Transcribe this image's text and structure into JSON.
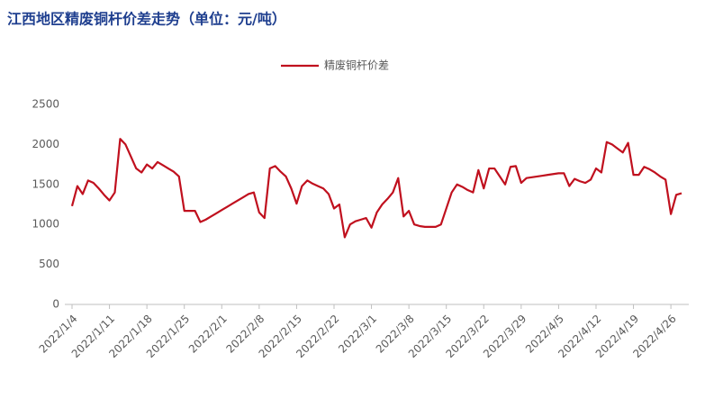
{
  "chart_data": {
    "type": "line",
    "title": "江西地区精废铜杆价差走势（单位：元/吨）",
    "categories": [
      "2022/1/4",
      null,
      null,
      null,
      null,
      null,
      null,
      "2022/1/11",
      null,
      null,
      null,
      null,
      null,
      null,
      "2022/1/18",
      null,
      null,
      null,
      null,
      null,
      null,
      "2022/1/25",
      null,
      null,
      null,
      null,
      null,
      null,
      "2022/2/1",
      null,
      null,
      null,
      null,
      null,
      null,
      "2022/2/8",
      null,
      null,
      null,
      null,
      null,
      null,
      "2022/2/15",
      null,
      null,
      null,
      null,
      null,
      null,
      "2022/2/22",
      null,
      null,
      null,
      null,
      null,
      null,
      "2022/3/1",
      null,
      null,
      null,
      null,
      null,
      null,
      "2022/3/8",
      null,
      null,
      null,
      null,
      null,
      null,
      "2022/3/15",
      null,
      null,
      null,
      null,
      null,
      null,
      "2022/3/22",
      null,
      null,
      null,
      null,
      null,
      null,
      "2022/3/29",
      null,
      null,
      null,
      null,
      null,
      null,
      "2022/4/5",
      null,
      null,
      null,
      null,
      null,
      null,
      "2022/4/12",
      null,
      null,
      null,
      null,
      null,
      null,
      "2022/4/19",
      null,
      null,
      null,
      null,
      null,
      null,
      "2022/4/26",
      null,
      null
    ],
    "series": [
      {
        "name": "精废铜杆价差",
        "color": "#c0101e",
        "values": [
          1230,
          1480,
          1380,
          1550,
          1520,
          1450,
          1370,
          1300,
          1400,
          2070,
          2000,
          1850,
          1700,
          1650,
          1750,
          1700,
          1780,
          1740,
          1700,
          1660,
          1600,
          1170,
          1170,
          1170,
          1030,
          1060,
          1100,
          1140,
          1180,
          1220,
          1260,
          1300,
          1340,
          1380,
          1400,
          1150,
          1080,
          1700,
          1730,
          1660,
          1600,
          1450,
          1260,
          1480,
          1550,
          1510,
          1480,
          1450,
          1380,
          1200,
          1250,
          840,
          1000,
          1040,
          1060,
          1080,
          960,
          1150,
          1250,
          1320,
          1400,
          1580,
          1100,
          1170,
          1000,
          980,
          970,
          970,
          970,
          1000,
          1200,
          1400,
          1500,
          1470,
          1430,
          1400,
          1680,
          1450,
          1700,
          1700,
          1600,
          1500,
          1720,
          1730,
          1520,
          1580,
          1590,
          1600,
          1610,
          1620,
          1630,
          1640,
          1640,
          1480,
          1570,
          1540,
          1520,
          1560,
          1700,
          1650,
          2030,
          2000,
          1950,
          1900,
          2020,
          1620,
          1620,
          1720,
          1690,
          1650,
          1600,
          1560,
          1130,
          1370,
          1390
        ]
      }
    ],
    "ylim": [
      0,
      2500
    ],
    "yticks": [
      0,
      500,
      1000,
      1500,
      2000,
      2500
    ],
    "grid": false,
    "legend": "top"
  }
}
